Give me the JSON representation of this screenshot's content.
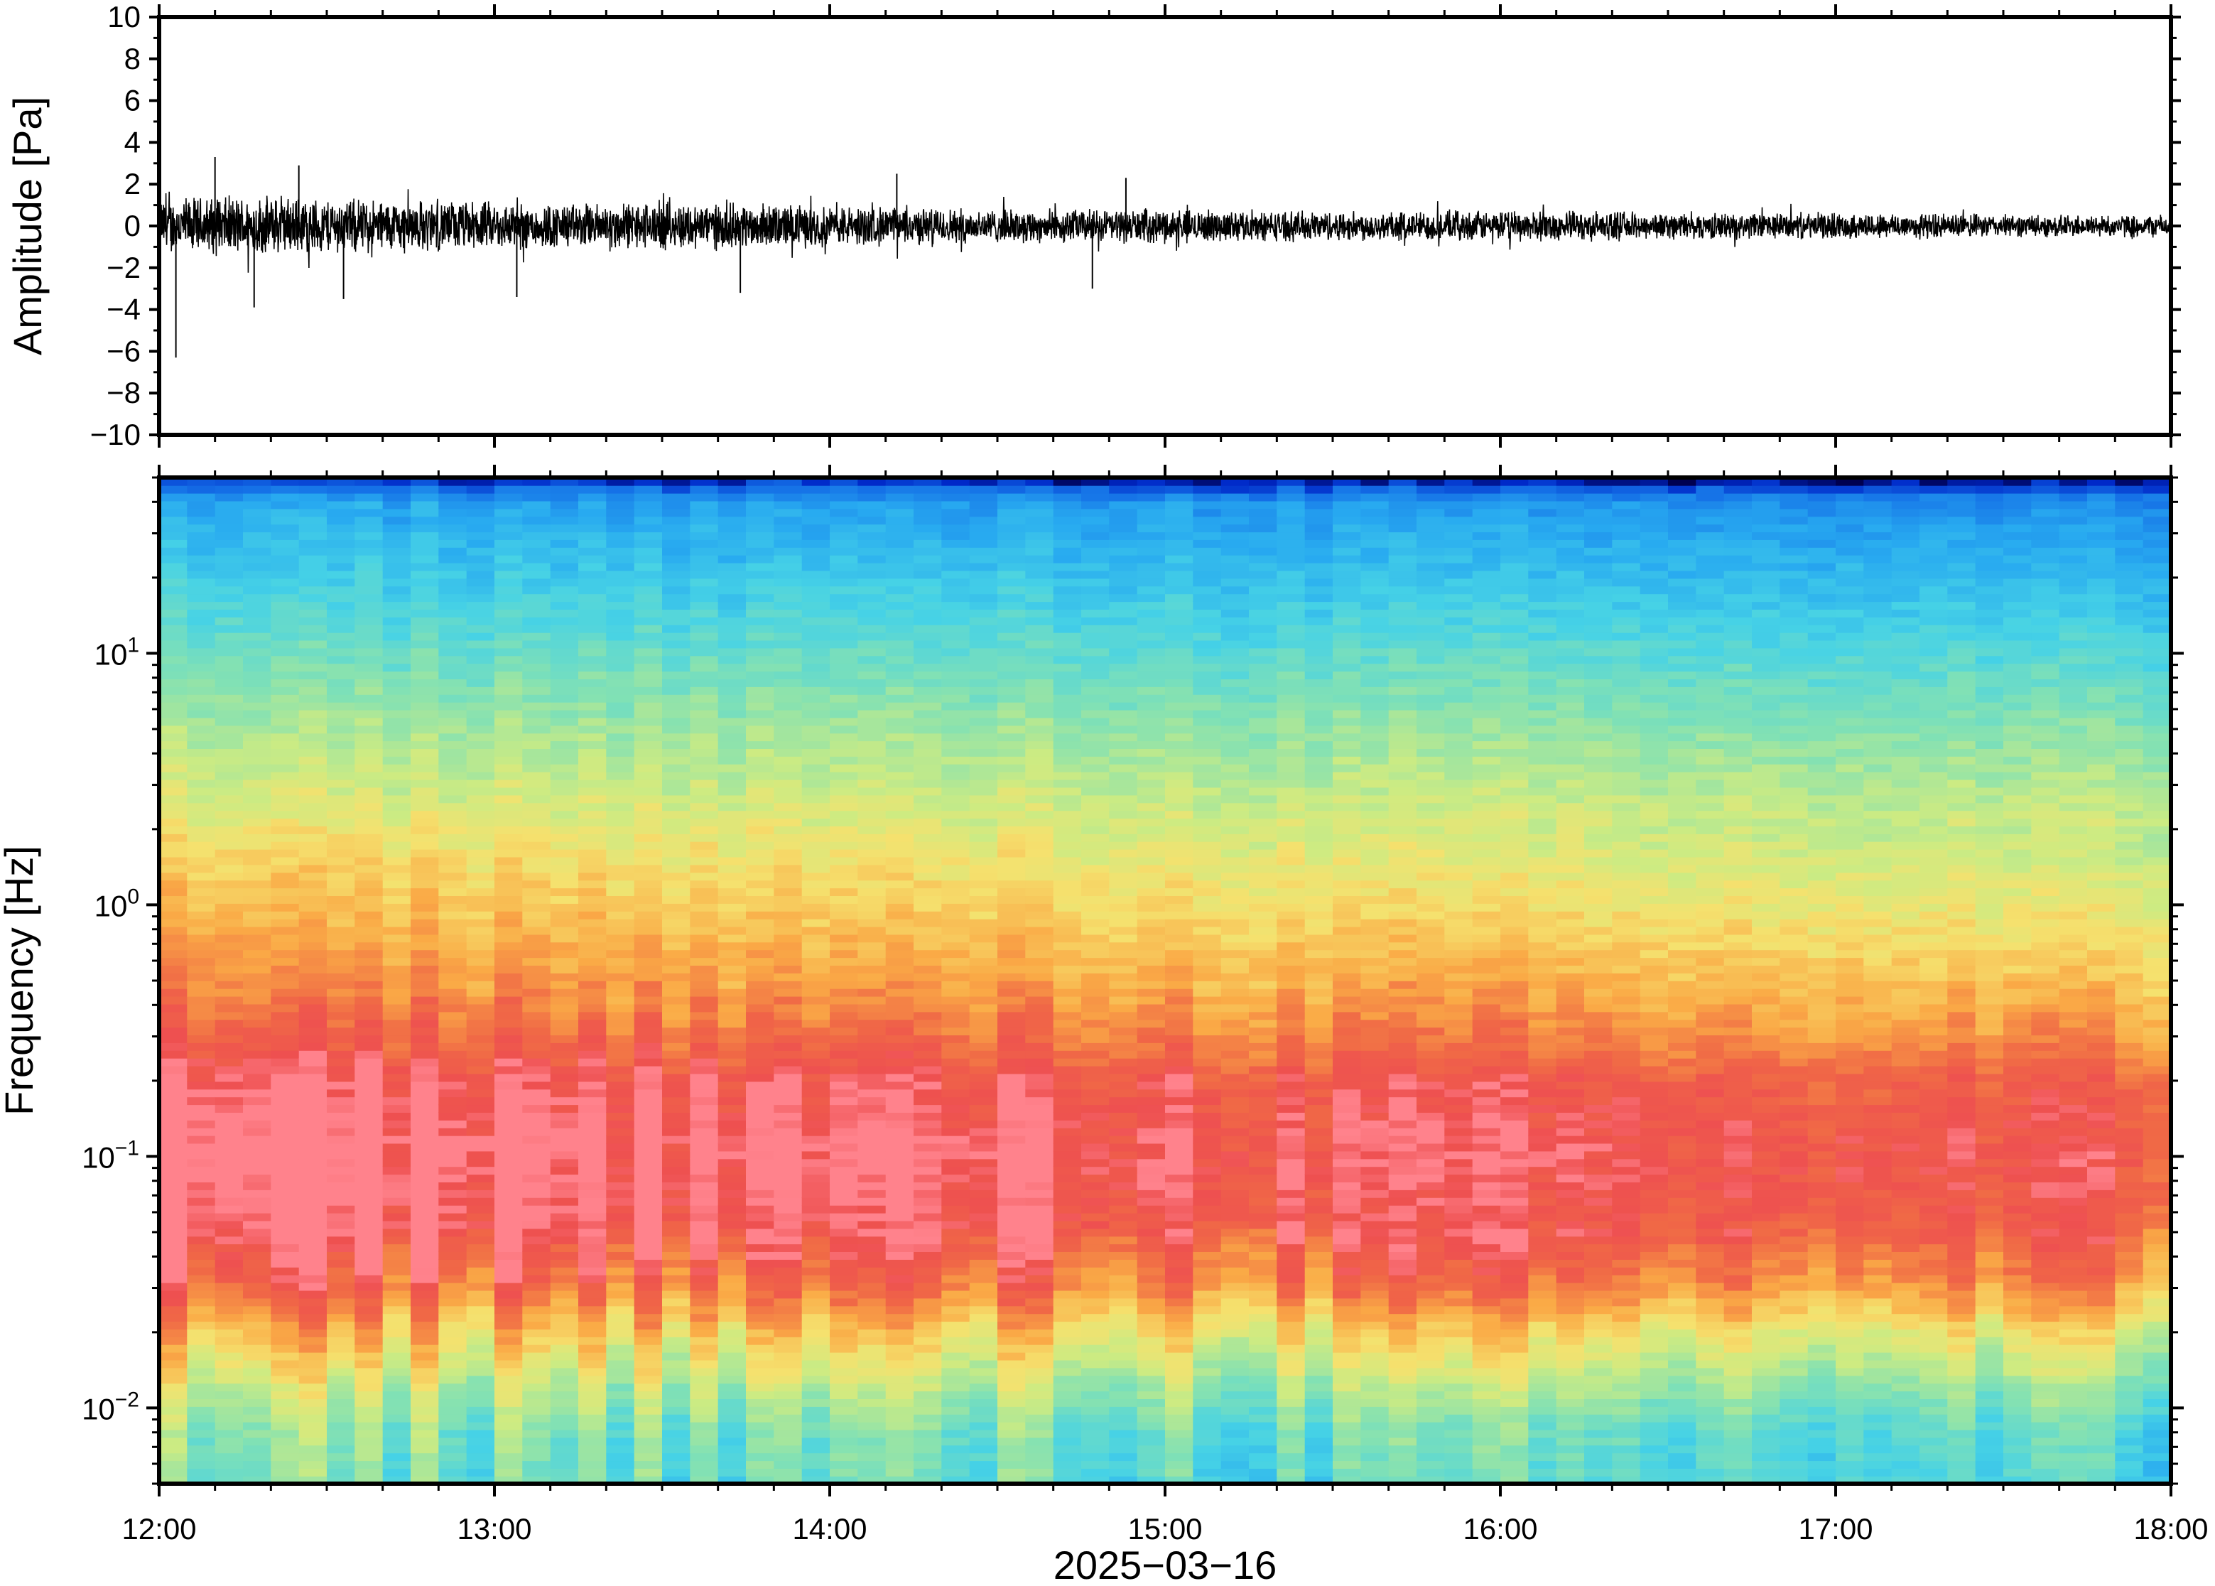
{
  "chart_data": [
    {
      "type": "line",
      "panel": "waveform",
      "title": "",
      "xlabel": "",
      "ylabel": "Amplitude [Pa]",
      "ylim": [
        -10,
        10
      ],
      "yticks": [
        -10,
        -8,
        -6,
        -4,
        -2,
        0,
        2,
        4,
        6,
        8,
        10
      ],
      "ytick_labels": [
        "−10",
        "−8",
        "−6",
        "−4",
        "−2",
        "0",
        "2",
        "4",
        "6",
        "8",
        "10"
      ],
      "xlim": [
        "12:00",
        "18:00"
      ],
      "series_color": "#000000",
      "envelope": {
        "time_hours": [
          12.0,
          12.25,
          12.5,
          12.75,
          13.0,
          13.25,
          13.5,
          13.75,
          14.0,
          14.25,
          14.5,
          14.75,
          15.0,
          15.25,
          15.5,
          15.75,
          16.0,
          16.25,
          16.5,
          16.75,
          17.0,
          17.25,
          17.5,
          17.75,
          18.0
        ],
        "typical_half_range_pa": [
          1.5,
          1.6,
          1.5,
          1.4,
          1.3,
          1.2,
          1.3,
          1.2,
          1.1,
          1.0,
          0.9,
          0.9,
          0.9,
          0.8,
          0.8,
          0.8,
          0.8,
          0.8,
          0.7,
          0.7,
          0.7,
          0.7,
          0.6,
          0.6,
          0.6
        ]
      },
      "notable_peaks": [
        {
          "time": "12:03",
          "value": -6.3
        },
        {
          "time": "12:10",
          "value": 3.3
        },
        {
          "time": "12:17",
          "value": -3.9
        },
        {
          "time": "12:25",
          "value": 2.9
        },
        {
          "time": "12:33",
          "value": -3.5
        },
        {
          "time": "13:04",
          "value": -3.4
        },
        {
          "time": "13:44",
          "value": -3.2
        },
        {
          "time": "14:12",
          "value": 2.5
        },
        {
          "time": "14:47",
          "value": -3.0
        },
        {
          "time": "14:53",
          "value": 2.3
        }
      ],
      "grid": false
    },
    {
      "type": "heatmap",
      "panel": "spectrogram",
      "title": "",
      "xlabel": "2025−03−16",
      "ylabel": "Frequency [Hz]",
      "y_scale": "log",
      "ylim": [
        0.005,
        50
      ],
      "yticks": [
        0.01,
        0.1,
        1,
        10
      ],
      "ytick_labels": [
        {
          "base": "10",
          "exp": "−2"
        },
        {
          "base": "10",
          "exp": "−1"
        },
        {
          "base": "10",
          "exp": "0"
        },
        {
          "base": "10",
          "exp": "1"
        }
      ],
      "xlim": [
        "12:00",
        "18:00"
      ],
      "xticks": [
        "12:00",
        "13:00",
        "14:00",
        "15:00",
        "16:00",
        "17:00",
        "18:00"
      ],
      "colormap": "jet-like (blue low, red high)",
      "power_profile_by_frequency": {
        "frequency_hz": [
          0.005,
          0.008,
          0.012,
          0.02,
          0.03,
          0.05,
          0.1,
          0.2,
          0.3,
          0.5,
          1,
          2,
          5,
          10,
          20,
          40,
          50
        ],
        "relative_level": [
          0.42,
          0.45,
          0.55,
          0.7,
          0.85,
          0.95,
          0.99,
          0.95,
          0.86,
          0.78,
          0.7,
          0.63,
          0.52,
          0.42,
          0.32,
          0.22,
          0.02
        ]
      },
      "trend_note_values": {
        "start_offset": 0.05,
        "end_offset": -0.06
      },
      "grid": false
    }
  ]
}
